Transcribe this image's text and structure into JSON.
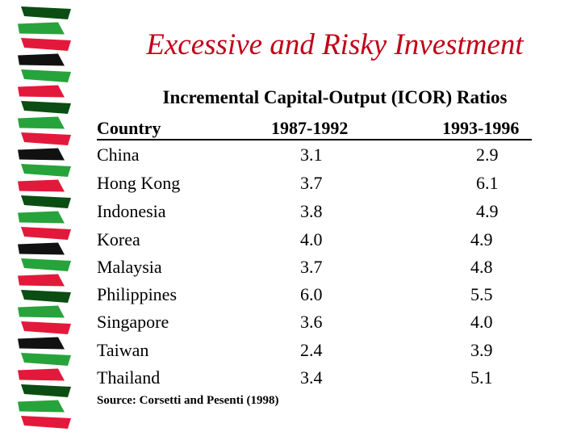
{
  "slide": {
    "title": "Excessive and Risky Investment",
    "subtitle": "Incremental Capital-Output (ICOR) Ratios",
    "source": "Source: Corsetti and Pesenti (1998)"
  },
  "table": {
    "headers": [
      "Country",
      "1987-1992",
      "1993-1996"
    ],
    "rows": [
      [
        "China",
        "3.1",
        "2.9"
      ],
      [
        "Hong Kong",
        "3.7",
        "6.1"
      ],
      [
        "Indonesia",
        "3.8",
        "4.9"
      ],
      [
        "Korea",
        "4.0",
        "4.9"
      ],
      [
        "Malaysia",
        "3.7",
        "4.8"
      ],
      [
        "Philippines",
        "6.0",
        "5.5"
      ],
      [
        "Singapore",
        "3.6",
        "4.0"
      ],
      [
        "Taiwan",
        "2.4",
        "3.9"
      ],
      [
        "Thailand",
        "3.4",
        "5.1"
      ]
    ]
  },
  "colors": {
    "title": "#c00018",
    "ribbon_dark": "#0b4d12",
    "ribbon_green": "#27a33b",
    "ribbon_red": "#e2193b",
    "ribbon_black": "#111111"
  }
}
